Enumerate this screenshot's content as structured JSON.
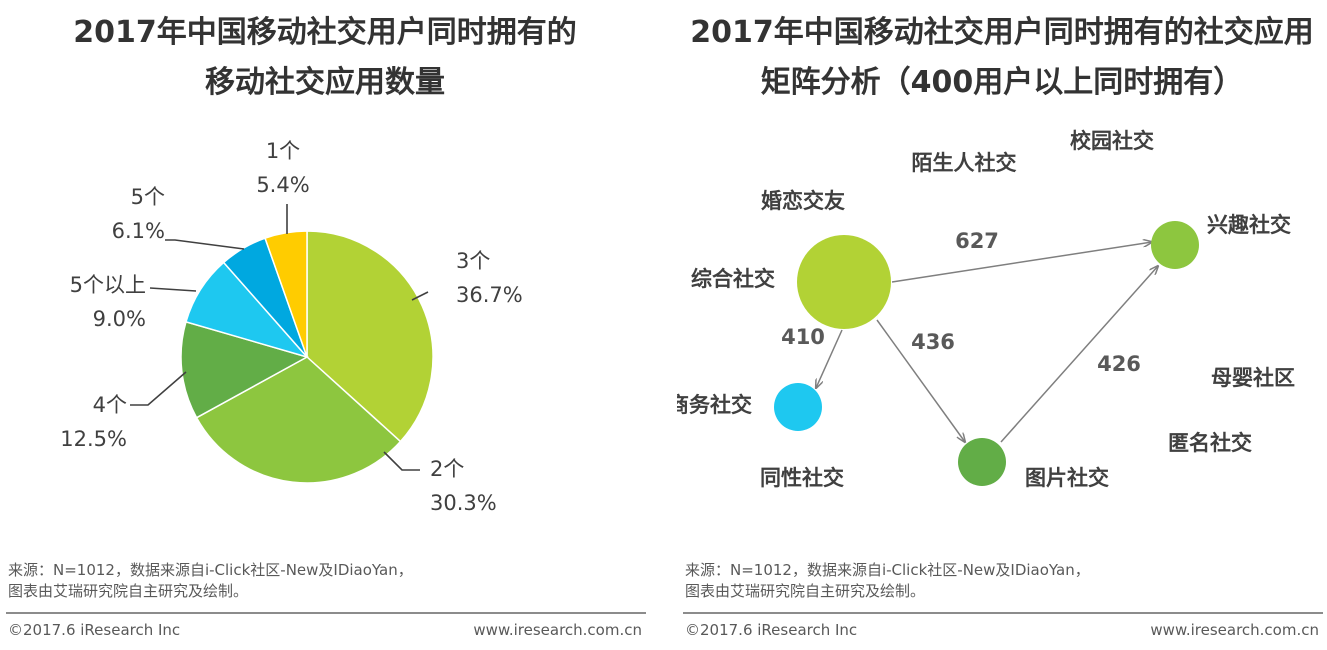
{
  "left": {
    "title_line1": "2017年中国移动社交用户同时拥有的",
    "title_line2": "移动社交应用数量",
    "source_line1": "来源：N=1012，数据来源自i-Click社区-New及IDiaoYan，",
    "source_line2": "图表由艾瑞研究院自主研究及绘制。",
    "copyright": "©2017.6 iResearch Inc",
    "website": "www.iresearch.com.cn"
  },
  "right": {
    "title_line1": "2017年中国移动社交用户同时拥有的社交应用",
    "title_line2": "矩阵分析（400用户以上同时拥有）",
    "source_line1": "来源：N=1012，数据来源自i-Click社区-New及IDiaoYan，",
    "source_line2": "图表由艾瑞研究院自主研究及绘制。",
    "copyright": "©2017.6 iResearch Inc",
    "website": "www.iresearch.com.cn"
  },
  "chart_data": [
    {
      "type": "pie",
      "title": "2017年中国移动社交用户同时拥有的移动社交应用数量",
      "slices": [
        {
          "label": "3个",
          "value": 36.7,
          "value_label": "36.7%",
          "color": "#b2d235"
        },
        {
          "label": "2个",
          "value": 30.3,
          "value_label": "30.3%",
          "color": "#8dc63f"
        },
        {
          "label": "4个",
          "value": 12.5,
          "value_label": "12.5%",
          "color": "#62ad47"
        },
        {
          "label": "5个以上",
          "value": 9.0,
          "value_label": "9.0%",
          "color": "#1ec8f0"
        },
        {
          "label": "5个",
          "value": 6.1,
          "value_label": "6.1%",
          "color": "#00a8e0"
        },
        {
          "label": "1个",
          "value": 5.4,
          "value_label": "5.4%",
          "color": "#ffcc00"
        }
      ]
    },
    {
      "type": "network",
      "title": "2017年中国移动社交用户同时拥有的社交应用矩阵分析（400用户以上同时拥有）",
      "nodes": [
        {
          "id": "zonghe",
          "label": "综合社交",
          "bubble": true,
          "size": "large",
          "color": "#b2d235"
        },
        {
          "id": "xingqu",
          "label": "兴趣社交",
          "bubble": true,
          "size": "small",
          "color": "#8dc63f"
        },
        {
          "id": "shangwu",
          "label": "商务社交",
          "bubble": true,
          "size": "small",
          "color": "#1ec8f0"
        },
        {
          "id": "tupian",
          "label": "图片社交",
          "bubble": true,
          "size": "small",
          "color": "#62ad47"
        },
        {
          "id": "xiaoyuan",
          "label": "校园社交",
          "bubble": false
        },
        {
          "id": "moshengren",
          "label": "陌生人社交",
          "bubble": false
        },
        {
          "id": "hunlian",
          "label": "婚恋交友",
          "bubble": false
        },
        {
          "id": "muying",
          "label": "母婴社区",
          "bubble": false
        },
        {
          "id": "niming",
          "label": "匿名社交",
          "bubble": false
        },
        {
          "id": "tongxing",
          "label": "同性社交",
          "bubble": false
        }
      ],
      "edges": [
        {
          "from": "zonghe",
          "to": "xingqu",
          "value": 627
        },
        {
          "from": "zonghe",
          "to": "shangwu",
          "value": 410
        },
        {
          "from": "zonghe",
          "to": "tupian",
          "value": 436
        },
        {
          "from": "tupian",
          "to": "xingqu",
          "value": 426
        }
      ]
    }
  ]
}
